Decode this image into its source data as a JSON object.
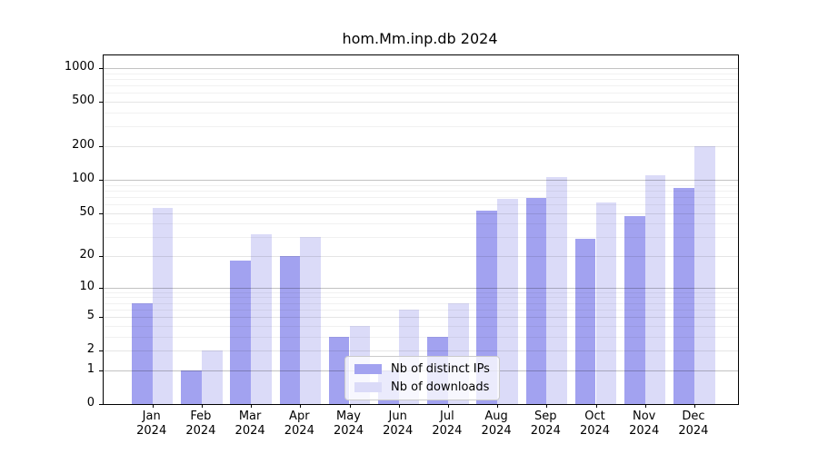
{
  "chart_data": {
    "type": "bar",
    "title": "hom.Mm.inp.db 2024",
    "categories": [
      "Jan",
      "Feb",
      "Mar",
      "Apr",
      "May",
      "Jun",
      "Jul",
      "Aug",
      "Sep",
      "Oct",
      "Nov",
      "Dec"
    ],
    "year_line": "2024",
    "series": [
      {
        "name": "Nb of distinct IPs",
        "color": "#a2a2f0",
        "values": [
          7,
          1,
          18,
          20,
          3,
          1,
          3,
          52,
          68,
          29,
          47,
          84
        ]
      },
      {
        "name": "Nb of downloads",
        "color": "#dbdbf8",
        "values": [
          55,
          2,
          32,
          30,
          4,
          6,
          7,
          67,
          105,
          62,
          110,
          199
        ]
      }
    ],
    "y_axis": {
      "scale": "log1p",
      "ticks": [
        0,
        1,
        2,
        5,
        10,
        20,
        50,
        100,
        200,
        500,
        1000
      ],
      "major_ticks": [
        1,
        10,
        100,
        1000
      ],
      "minor_gridlines": [
        3,
        4,
        6,
        7,
        8,
        9,
        30,
        40,
        60,
        70,
        80,
        90,
        300,
        400,
        600,
        700,
        800,
        900
      ],
      "range": [
        0,
        1300
      ]
    },
    "grid": "horizontal, drawn over bars",
    "legend": {
      "position": "lower center inside plot",
      "entries": [
        "Nb of distinct IPs",
        "Nb of downloads"
      ]
    },
    "colors": {
      "ips_bar": "#a2a2f0",
      "downloads_bar": "#dbdbf8",
      "axis": "#000000",
      "legend_border": "#cbcbcb"
    }
  }
}
